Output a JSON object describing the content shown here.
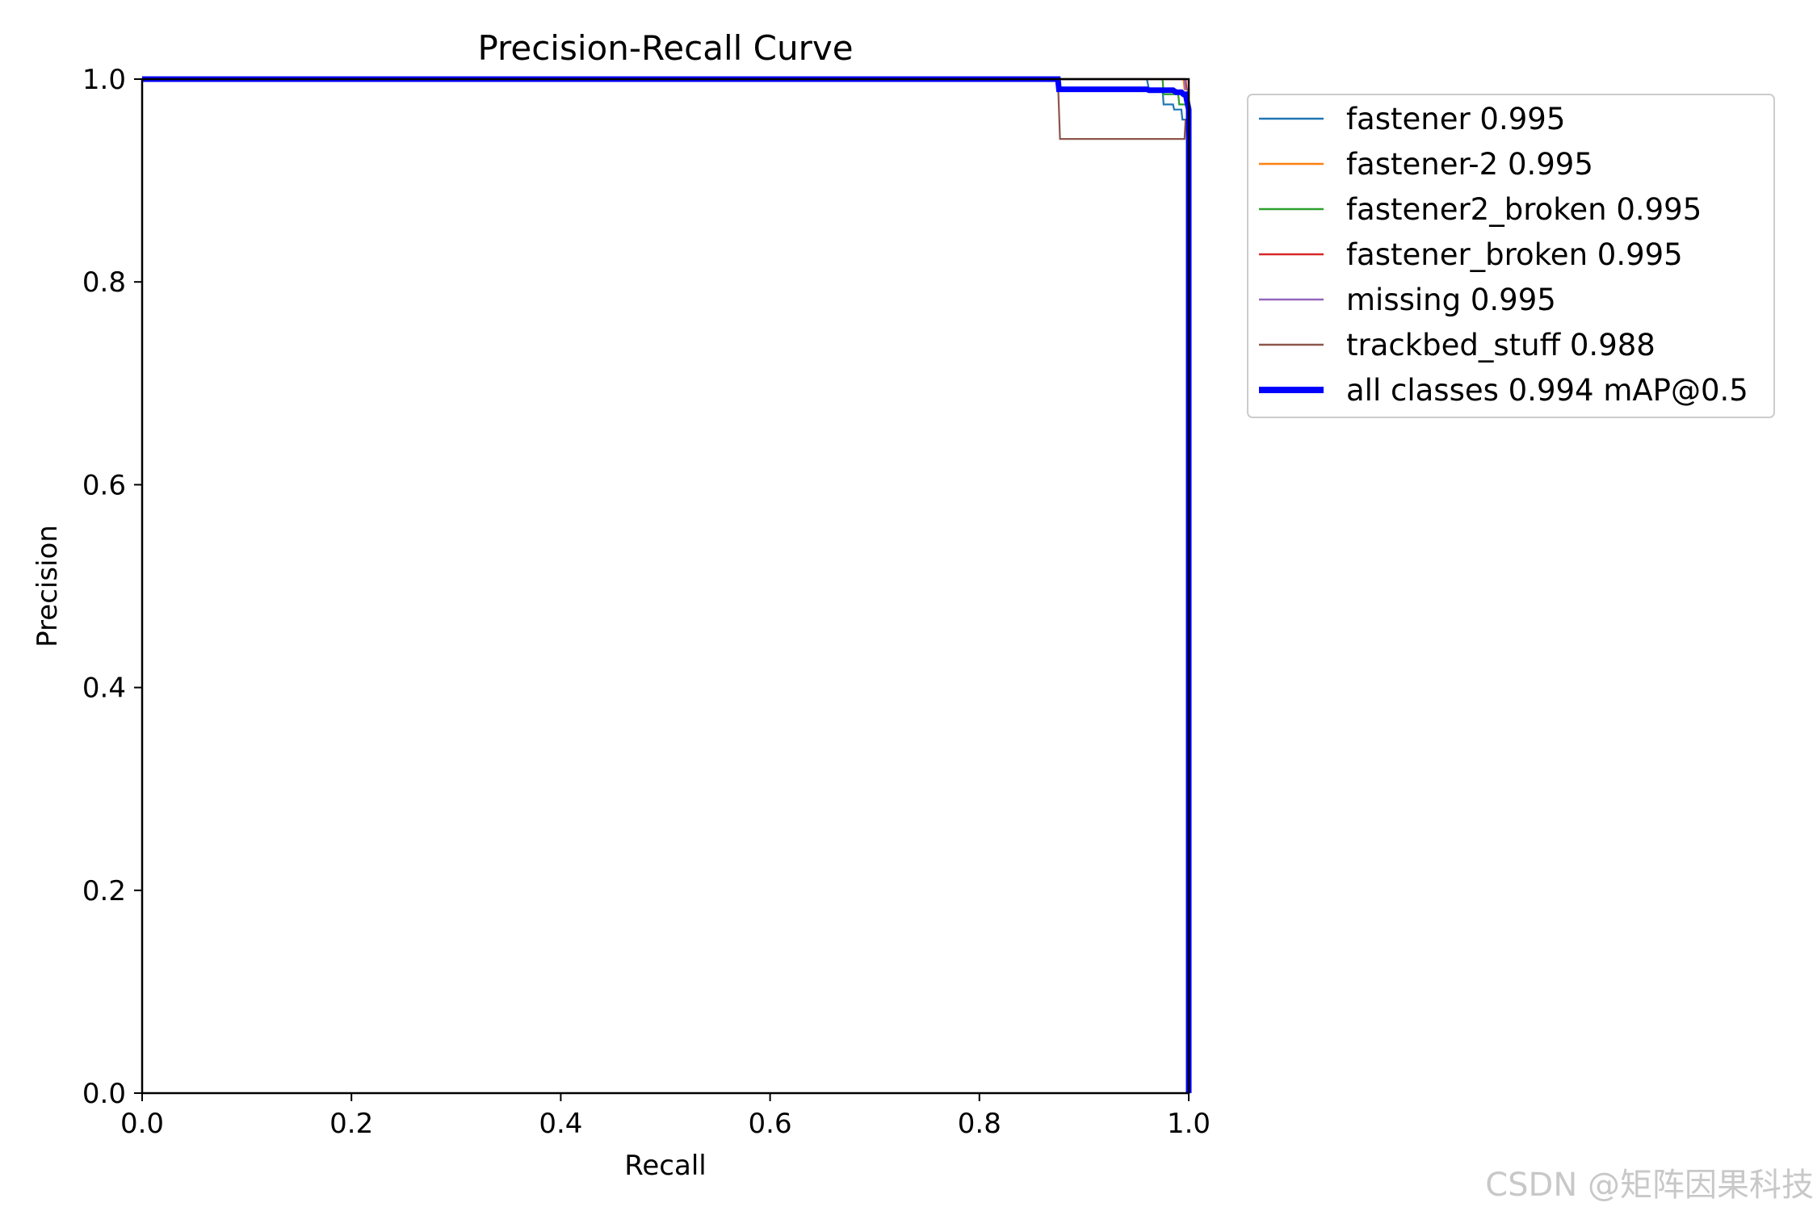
{
  "chart_data": {
    "type": "line",
    "title": "Precision-Recall Curve",
    "xlabel": "Recall",
    "ylabel": "Precision",
    "xlim": [
      0,
      1
    ],
    "ylim": [
      0,
      1
    ],
    "xticks": [
      "0.0",
      "0.2",
      "0.4",
      "0.6",
      "0.8",
      "1.0"
    ],
    "yticks": [
      "0.0",
      "0.2",
      "0.4",
      "0.6",
      "0.8",
      "1.0"
    ],
    "grid": false,
    "legend_position": "outside-right",
    "series": [
      {
        "name": "fastener 0.995",
        "color": "#1f77b4",
        "width": "thin",
        "x": [
          0,
          0.96,
          0.962,
          0.975,
          0.976,
          0.985,
          0.986,
          0.993,
          0.994,
          0.997,
          0.998,
          1.0,
          1.0
        ],
        "y": [
          1.0,
          1.0,
          0.99,
          0.99,
          0.975,
          0.975,
          0.97,
          0.97,
          0.96,
          0.96,
          0.95,
          0.95,
          0.0
        ]
      },
      {
        "name": "fastener-2 0.995",
        "color": "#ff7f0e",
        "width": "thin",
        "x": [
          0,
          0.995,
          0.996,
          0.999,
          1.0,
          1.0
        ],
        "y": [
          1.0,
          1.0,
          0.99,
          0.99,
          0.98,
          0.0
        ]
      },
      {
        "name": "fastener2_broken 0.995",
        "color": "#2ca02c",
        "width": "thin",
        "x": [
          0,
          0.975,
          0.976,
          0.99,
          0.991,
          0.998,
          0.999,
          1.0,
          1.0
        ],
        "y": [
          1.0,
          1.0,
          0.985,
          0.985,
          0.975,
          0.975,
          0.97,
          0.97,
          0.0
        ]
      },
      {
        "name": "fastener_broken 0.995",
        "color": "#d62728",
        "width": "thin",
        "x": [
          0,
          0.997,
          0.998,
          1.0,
          1.0
        ],
        "y": [
          1.0,
          1.0,
          0.99,
          0.99,
          0.0
        ]
      },
      {
        "name": "missing 0.995",
        "color": "#9467bd",
        "width": "thin",
        "x": [
          0,
          0.996,
          0.997,
          1.0,
          1.0
        ],
        "y": [
          1.0,
          1.0,
          0.99,
          0.99,
          0.0
        ]
      },
      {
        "name": "trackbed_stuff 0.988",
        "color": "#8c564b",
        "width": "thin",
        "x": [
          0,
          0.875,
          0.877,
          0.996,
          0.997,
          0.999,
          1.0
        ],
        "y": [
          1.0,
          1.0,
          0.941,
          0.941,
          0.96,
          0.96,
          0.0
        ]
      },
      {
        "name": "all classes 0.994 mAP@0.5",
        "color": "#0000ff",
        "width": "thick",
        "x": [
          0,
          0.875,
          0.876,
          0.96,
          0.962,
          0.985,
          0.988,
          0.993,
          0.995,
          0.997,
          0.998,
          1.0,
          1.0
        ],
        "y": [
          1.0,
          1.0,
          0.99,
          0.99,
          0.989,
          0.989,
          0.987,
          0.987,
          0.985,
          0.985,
          0.98,
          0.97,
          0.0
        ]
      }
    ]
  },
  "watermark": "CSDN @矩阵因果科技"
}
